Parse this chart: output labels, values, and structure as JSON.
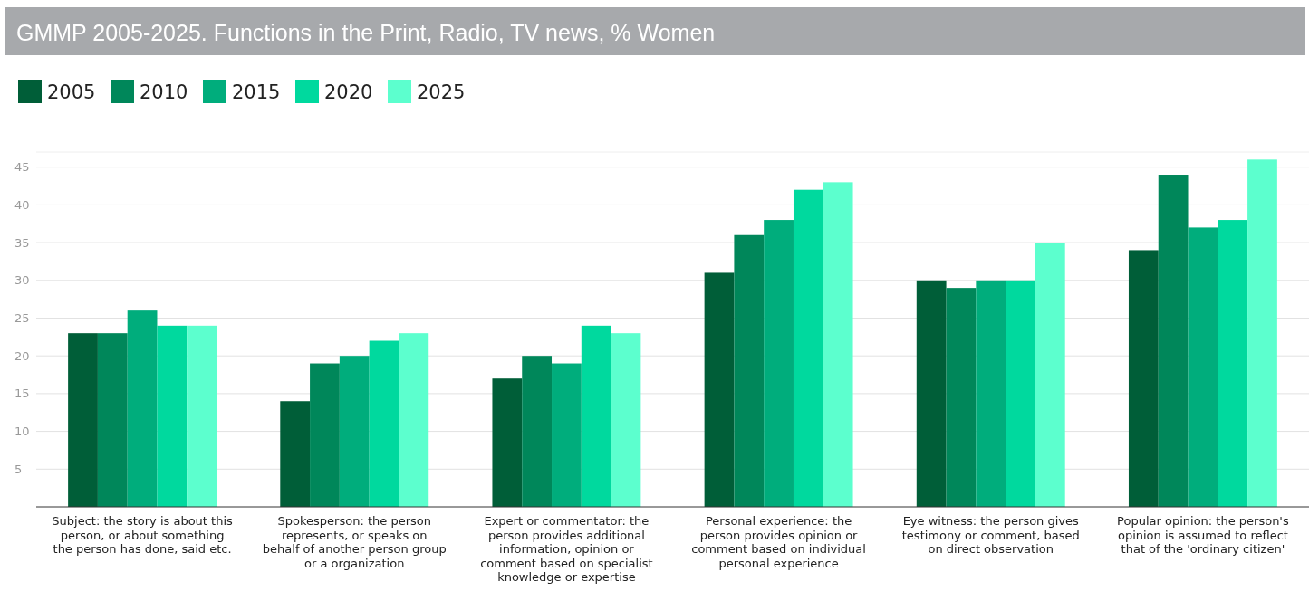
{
  "chart_data": {
    "type": "bar",
    "title": "GMMP 2005-2025. Functions in the Print, Radio, TV news, % Women",
    "categories": [
      "Subject: the story is about this person, or about something the person has done, said etc.",
      "Spokesperson: the person represents, or speaks on behalf of another person group or a organization",
      "Expert or commentator: the person provides additional information, opinion or comment based on specialist knowledge or expertise",
      "Personal experience: the person provides opinion or comment based on individual personal experience",
      "Eye witness: the person gives testimony or comment, based on direct observation",
      "Popular opinion: the person's opinion is assumed to reflect that of the 'ordinary citizen'"
    ],
    "series": [
      {
        "name": "2005",
        "color": "#005e38",
        "values": [
          23,
          14,
          17,
          31,
          30,
          34
        ]
      },
      {
        "name": "2010",
        "color": "#00875a",
        "values": [
          23,
          19,
          20,
          36,
          29,
          44
        ]
      },
      {
        "name": "2015",
        "color": "#00ad7c",
        "values": [
          26,
          20,
          19,
          38,
          30,
          37
        ]
      },
      {
        "name": "2020",
        "color": "#00d99e",
        "values": [
          24,
          22,
          24,
          42,
          30,
          38
        ]
      },
      {
        "name": "2025",
        "color": "#5cffce",
        "values": [
          24,
          23,
          23,
          43,
          35,
          46
        ]
      }
    ],
    "ylim": [
      0,
      47
    ],
    "yticks": [
      5,
      10,
      15,
      20,
      25,
      30,
      35,
      40,
      45
    ],
    "grid": "y",
    "legend": "top left"
  }
}
